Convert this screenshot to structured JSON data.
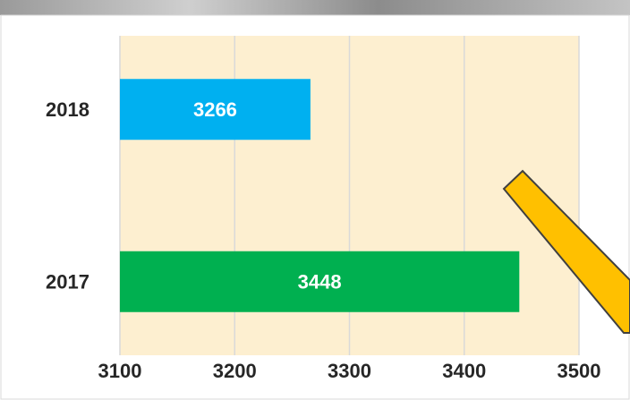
{
  "chart_data": {
    "type": "bar",
    "orientation": "horizontal",
    "categories": [
      "2018",
      "2017"
    ],
    "values": [
      3266,
      3448
    ],
    "colors": [
      "#00b0f0",
      "#00b050"
    ],
    "xlim": [
      3100,
      3500
    ],
    "xticks": [
      3100,
      3200,
      3300,
      3400,
      3500
    ],
    "grid": true,
    "plot_background": "#fdefd0"
  }
}
